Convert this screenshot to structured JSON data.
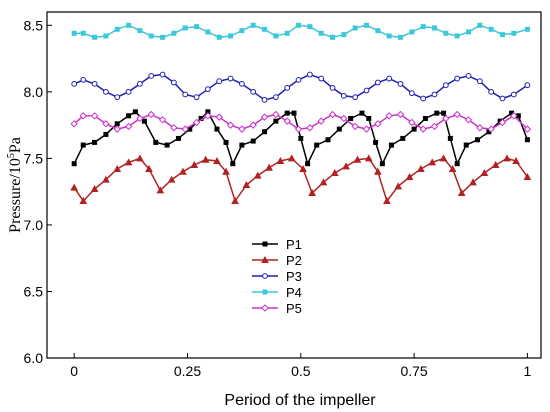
{
  "chart_data": {
    "type": "line",
    "title": "",
    "xlabel": "Period of the impeller",
    "ylabel_prefix": "Pressure/10",
    "ylabel_exp": "5",
    "ylabel_suffix": "Pa",
    "xlim": [
      -0.06,
      1.03
    ],
    "ylim": [
      6.0,
      8.6
    ],
    "xticks": [
      0,
      0.25,
      0.5,
      0.75,
      1
    ],
    "xtick_labels": [
      "0",
      "0.25",
      "0.5",
      "0.75",
      "1"
    ],
    "yticks": [
      6.0,
      6.5,
      7.0,
      7.5,
      8.0,
      8.5
    ],
    "ytick_labels": [
      "6.0",
      "6.5",
      "7.0",
      "7.5",
      "8.0",
      "8.5"
    ],
    "legend_position": "center-bottom",
    "grid": false,
    "series": [
      {
        "name": "P1",
        "color": "#000000",
        "marker": "square",
        "x": [
          0.0,
          0.02,
          0.045,
          0.07,
          0.095,
          0.12,
          0.135,
          0.155,
          0.18,
          0.205,
          0.23,
          0.255,
          0.28,
          0.295,
          0.315,
          0.335,
          0.35,
          0.37,
          0.395,
          0.42,
          0.445,
          0.47,
          0.485,
          0.5,
          0.515,
          0.535,
          0.56,
          0.585,
          0.61,
          0.635,
          0.65,
          0.665,
          0.68,
          0.7,
          0.725,
          0.75,
          0.775,
          0.8,
          0.815,
          0.83,
          0.845,
          0.865,
          0.89,
          0.915,
          0.94,
          0.965,
          0.98,
          1.0
        ],
        "y": [
          7.46,
          7.6,
          7.62,
          7.68,
          7.76,
          7.82,
          7.85,
          7.78,
          7.62,
          7.6,
          7.65,
          7.72,
          7.8,
          7.85,
          7.72,
          7.62,
          7.46,
          7.6,
          7.63,
          7.7,
          7.78,
          7.84,
          7.84,
          7.65,
          7.46,
          7.6,
          7.64,
          7.72,
          7.8,
          7.84,
          7.8,
          7.62,
          7.46,
          7.6,
          7.65,
          7.72,
          7.8,
          7.84,
          7.84,
          7.65,
          7.46,
          7.6,
          7.64,
          7.7,
          7.78,
          7.84,
          7.82,
          7.64
        ]
      },
      {
        "name": "P2",
        "color": "#b22222",
        "marker": "triangle",
        "x": [
          0.0,
          0.02,
          0.045,
          0.07,
          0.095,
          0.12,
          0.145,
          0.165,
          0.19,
          0.215,
          0.24,
          0.265,
          0.29,
          0.315,
          0.335,
          0.355,
          0.38,
          0.405,
          0.43,
          0.455,
          0.48,
          0.505,
          0.525,
          0.55,
          0.575,
          0.6,
          0.625,
          0.65,
          0.67,
          0.69,
          0.715,
          0.74,
          0.765,
          0.79,
          0.815,
          0.835,
          0.855,
          0.88,
          0.905,
          0.93,
          0.955,
          0.975,
          1.0
        ],
        "y": [
          7.28,
          7.18,
          7.27,
          7.34,
          7.42,
          7.47,
          7.5,
          7.42,
          7.26,
          7.34,
          7.4,
          7.45,
          7.49,
          7.48,
          7.4,
          7.18,
          7.3,
          7.37,
          7.43,
          7.48,
          7.5,
          7.42,
          7.24,
          7.32,
          7.39,
          7.44,
          7.49,
          7.5,
          7.4,
          7.18,
          7.29,
          7.36,
          7.42,
          7.47,
          7.5,
          7.42,
          7.24,
          7.32,
          7.39,
          7.45,
          7.5,
          7.48,
          7.36
        ]
      },
      {
        "name": "P3",
        "color": "#1f1fb4",
        "marker": "circle",
        "x": [
          0.0,
          0.02,
          0.045,
          0.07,
          0.095,
          0.12,
          0.145,
          0.17,
          0.195,
          0.22,
          0.245,
          0.27,
          0.295,
          0.32,
          0.345,
          0.37,
          0.395,
          0.42,
          0.445,
          0.47,
          0.495,
          0.52,
          0.545,
          0.57,
          0.595,
          0.62,
          0.645,
          0.67,
          0.695,
          0.72,
          0.745,
          0.77,
          0.795,
          0.82,
          0.845,
          0.87,
          0.895,
          0.92,
          0.945,
          0.97,
          1.0
        ],
        "y": [
          8.06,
          8.09,
          8.06,
          8.0,
          7.96,
          8.0,
          8.06,
          8.12,
          8.13,
          8.07,
          7.98,
          7.96,
          8.02,
          8.08,
          8.1,
          8.06,
          8.0,
          7.94,
          7.96,
          8.03,
          8.09,
          8.13,
          8.1,
          8.03,
          7.97,
          7.96,
          8.01,
          8.07,
          8.1,
          8.06,
          7.99,
          7.95,
          7.98,
          8.05,
          8.1,
          8.12,
          8.08,
          8.0,
          7.95,
          7.98,
          8.05
        ]
      },
      {
        "name": "P4",
        "color": "#3cc8d8",
        "marker": "square",
        "x": [
          0.0,
          0.02,
          0.045,
          0.07,
          0.095,
          0.12,
          0.145,
          0.17,
          0.195,
          0.22,
          0.245,
          0.27,
          0.295,
          0.32,
          0.345,
          0.37,
          0.395,
          0.42,
          0.445,
          0.47,
          0.495,
          0.52,
          0.545,
          0.57,
          0.595,
          0.62,
          0.645,
          0.67,
          0.695,
          0.72,
          0.745,
          0.77,
          0.795,
          0.82,
          0.845,
          0.87,
          0.895,
          0.92,
          0.945,
          0.97,
          1.0
        ],
        "y": [
          8.44,
          8.44,
          8.41,
          8.42,
          8.47,
          8.5,
          8.46,
          8.42,
          8.41,
          8.44,
          8.48,
          8.49,
          8.45,
          8.41,
          8.42,
          8.46,
          8.5,
          8.47,
          8.42,
          8.44,
          8.5,
          8.49,
          8.44,
          8.41,
          8.43,
          8.48,
          8.5,
          8.46,
          8.42,
          8.41,
          8.45,
          8.49,
          8.48,
          8.44,
          8.42,
          8.45,
          8.5,
          8.47,
          8.43,
          8.44,
          8.47
        ]
      },
      {
        "name": "P5",
        "color": "#cc33cc",
        "marker": "diamond",
        "x": [
          0.0,
          0.02,
          0.045,
          0.07,
          0.095,
          0.12,
          0.145,
          0.17,
          0.195,
          0.22,
          0.245,
          0.27,
          0.295,
          0.32,
          0.345,
          0.37,
          0.395,
          0.42,
          0.445,
          0.47,
          0.495,
          0.52,
          0.545,
          0.57,
          0.595,
          0.62,
          0.645,
          0.67,
          0.695,
          0.72,
          0.745,
          0.77,
          0.795,
          0.82,
          0.845,
          0.87,
          0.895,
          0.92,
          0.945,
          0.97,
          1.0
        ],
        "y": [
          7.76,
          7.82,
          7.82,
          7.76,
          7.72,
          7.74,
          7.8,
          7.83,
          7.79,
          7.73,
          7.72,
          7.77,
          7.82,
          7.81,
          7.75,
          7.72,
          7.75,
          7.81,
          7.83,
          7.78,
          7.72,
          7.73,
          7.78,
          7.83,
          7.8,
          7.74,
          7.72,
          7.76,
          7.82,
          7.83,
          7.77,
          7.72,
          7.74,
          7.8,
          7.83,
          7.79,
          7.73,
          7.72,
          7.77,
          7.82,
          7.72
        ]
      }
    ]
  }
}
